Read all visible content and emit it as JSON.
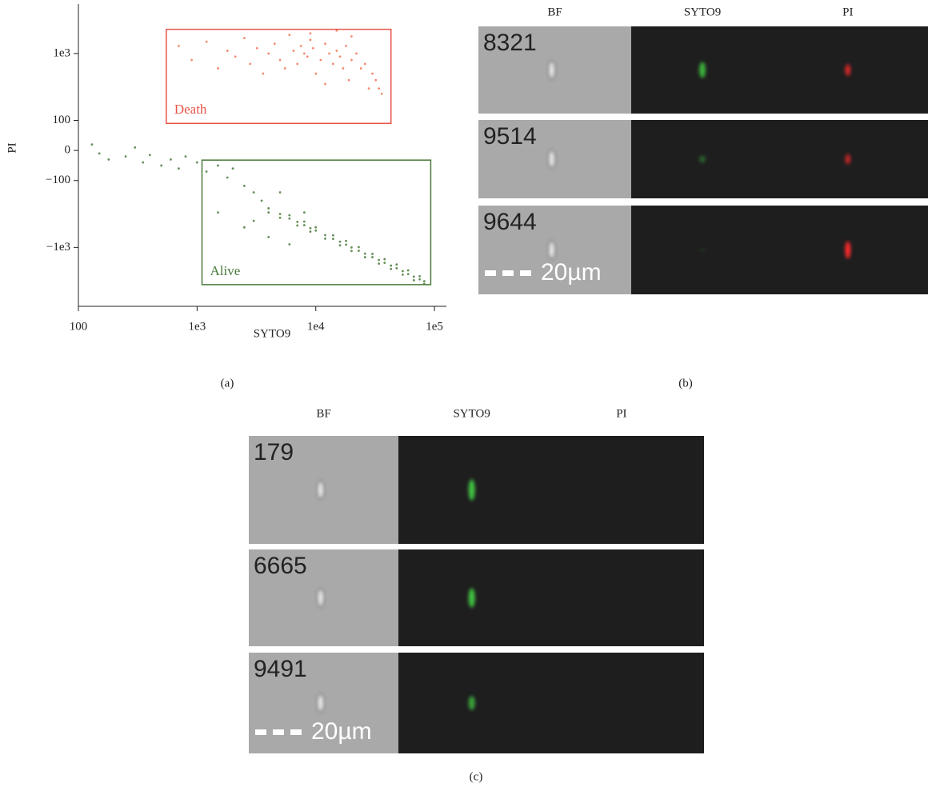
{
  "chart_data": {
    "type": "scatter",
    "xlabel": "SYTO9",
    "ylabel": "PI",
    "xscale": "log",
    "yscale": "symlog",
    "ylinthresh": 100,
    "xlim": [
      100,
      126000
    ],
    "ylim": [
      -7600,
      5500
    ],
    "xticks": [
      100,
      {
        "value": 1000,
        "label": "1e3"
      },
      {
        "value": 10000,
        "label": "1e4"
      },
      {
        "value": 100000,
        "label": "1e5"
      }
    ],
    "yticks": [
      {
        "value": -1000,
        "label": "−1e3"
      },
      {
        "value": -100,
        "label": "−100"
      },
      0,
      100,
      {
        "value": 1000,
        "label": "1e3"
      }
    ],
    "gates": [
      {
        "name": "Death",
        "color": "#e8544a",
        "x": [
          550,
          43000
        ],
        "y": [
          90,
          2300
        ]
      },
      {
        "name": "Alive",
        "color": "#4a7a3a",
        "x": [
          1100,
          93000
        ],
        "y": [
          -3600,
          -32
        ]
      }
    ],
    "series": [
      {
        "color": "#f0785a",
        "x": [
          700,
          900,
          1200,
          1500,
          1800,
          2100,
          2500,
          2800,
          3200,
          3600,
          4000,
          4500,
          5000,
          5500,
          6000,
          6500,
          7000,
          7500,
          8000,
          8500,
          9000,
          9500,
          10000,
          11000,
          12000,
          13000,
          14000,
          15000,
          16000,
          17000,
          18000,
          19000,
          20000,
          22000,
          24000,
          26000,
          28000,
          30000,
          32000,
          34000,
          36000,
          9000,
          15000,
          20000,
          12000
        ],
        "values": [
          1300,
          800,
          1500,
          600,
          1100,
          900,
          1700,
          700,
          1200,
          500,
          1000,
          1400,
          800,
          600,
          1900,
          1100,
          700,
          1300,
          1000,
          900,
          1600,
          1200,
          500,
          800,
          1400,
          1000,
          700,
          1100,
          900,
          600,
          1300,
          400,
          800,
          1000,
          600,
          700,
          300,
          500,
          400,
          300,
          250,
          2000,
          2200,
          1800,
          350
        ]
      },
      {
        "color": "#4a7a3a",
        "x": [
          4000,
          4000,
          5000,
          5000,
          6000,
          6000,
          7000,
          7000,
          8000,
          8000,
          9000,
          9000,
          10000,
          10000,
          12000,
          12000,
          14000,
          14000,
          16000,
          16000,
          18000,
          18000,
          20000,
          20000,
          23000,
          23000,
          26000,
          26000,
          30000,
          30000,
          34000,
          34000,
          38000,
          38000,
          43000,
          43000,
          48000,
          48000,
          54000,
          54000,
          60000,
          60000,
          67000,
          67000,
          75000,
          75000,
          82000,
          82000,
          130,
          150,
          180,
          250,
          300,
          350,
          400,
          500,
          600,
          700,
          800,
          1000,
          1200,
          1500,
          1800,
          2000,
          2500,
          3000,
          3500,
          1500,
          2500,
          4000,
          6000,
          8000,
          3000,
          5000
        ],
        "values": [
          -260,
          -300,
          -316,
          -360,
          -370,
          -330,
          -415,
          -470,
          -465,
          -410,
          -515,
          -580,
          -560,
          -500,
          -655,
          -740,
          -745,
          -660,
          -820,
          -930,
          -910,
          -800,
          -1000,
          -1130,
          -1120,
          -990,
          -1240,
          -1400,
          -1400,
          -1250,
          -1540,
          -1750,
          -1700,
          -1500,
          -1870,
          -2100,
          -2050,
          -1800,
          -2260,
          -2550,
          -2500,
          -2200,
          -2740,
          -3100,
          -3000,
          -2700,
          -3200,
          -3500,
          20,
          -10,
          -30,
          -20,
          10,
          -40,
          -15,
          -50,
          -30,
          -60,
          -20,
          -40,
          -70,
          -50,
          -90,
          -60,
          -120,
          -150,
          -200,
          -300,
          -500,
          -700,
          -900,
          -300,
          -400,
          -150
        ]
      }
    ]
  },
  "panel_labels": [
    "(a)",
    "(b)",
    "(c)"
  ],
  "panel_b": {
    "columns": [
      "BF",
      "SYTO9",
      "PI"
    ],
    "rows": [
      "8321",
      "9514",
      "9644"
    ],
    "scale_bar": "20µm"
  },
  "panel_c": {
    "columns": [
      "BF",
      "SYTO9",
      "PI"
    ],
    "rows": [
      "179",
      "6665",
      "9491"
    ],
    "scale_bar": "20µm"
  }
}
